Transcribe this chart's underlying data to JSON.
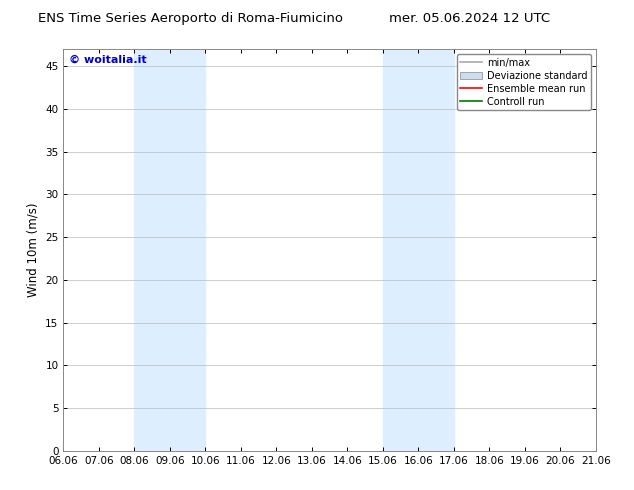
{
  "title_left": "ENS Time Series Aeroporto di Roma-Fiumicino",
  "title_right": "mer. 05.06.2024 12 UTC",
  "ylabel": "Wind 10m (m/s)",
  "watermark": "© woitalia.it",
  "ylim": [
    0,
    47
  ],
  "yticks": [
    0,
    5,
    10,
    15,
    20,
    25,
    30,
    35,
    40,
    45
  ],
  "xtick_labels": [
    "06.06",
    "07.06",
    "08.06",
    "09.06",
    "10.06",
    "11.06",
    "12.06",
    "13.06",
    "14.06",
    "15.06",
    "16.06",
    "17.06",
    "18.06",
    "19.06",
    "20.06",
    "21.06"
  ],
  "shaded_regions": [
    {
      "xmin": 2,
      "xmax": 4,
      "color": "#ddeeff"
    },
    {
      "xmin": 9,
      "xmax": 11,
      "color": "#ddeeff"
    }
  ],
  "legend_items": [
    {
      "label": "min/max",
      "color": "#aaaaaa",
      "lw": 1.2,
      "patch": false
    },
    {
      "label": "Deviazione standard",
      "color": "#ccddef",
      "lw": 7,
      "patch": true
    },
    {
      "label": "Ensemble mean run",
      "color": "#ff0000",
      "lw": 1.2,
      "patch": false
    },
    {
      "label": "Controll run",
      "color": "#007700",
      "lw": 1.2,
      "patch": false
    }
  ],
  "background_color": "#ffffff",
  "plot_bg_color": "#ffffff",
  "grid_color": "#bbbbbb",
  "tick_label_fontsize": 7.5,
  "axis_label_fontsize": 8.5,
  "title_fontsize": 9.5,
  "watermark_color": "#0000cc",
  "watermark_fontsize": 8
}
